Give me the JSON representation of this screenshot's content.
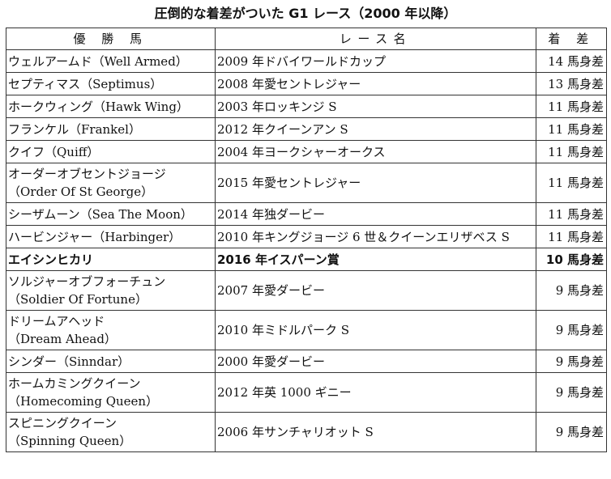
{
  "title": "圧倒的な着差がついた G1 レース（2000 年以降）",
  "headers": [
    "優 勝 馬",
    "レース名",
    "着 差"
  ],
  "rows": [
    {
      "winner": [
        "ウェルアームド（Well Armed）"
      ],
      "race": "2009 年ドバイワールドカップ",
      "margin": "14 馬身差"
    },
    {
      "winner": [
        "セプティマス（Septimus）"
      ],
      "race": "2008 年愛セントレジャー",
      "margin": "13 馬身差"
    },
    {
      "winner": [
        "ホークウィング（Hawk Wing）"
      ],
      "race": "2003 年ロッキンジ S",
      "margin": "11 馬身差"
    },
    {
      "winner": [
        "フランケル（Frankel）"
      ],
      "race": "2012 年クイーンアン S",
      "margin": "11 馬身差"
    },
    {
      "winner": [
        "クイフ（Quiff）"
      ],
      "race": "2004 年ヨークシャーオークス",
      "margin": "11 馬身差"
    },
    {
      "winner": [
        "オーダーオブセントジョージ",
        "（Order Of St George）"
      ],
      "race": "2015 年愛セントレジャー",
      "margin": "11 馬身差"
    },
    {
      "winner": [
        "シーザムーン（Sea The Moon）"
      ],
      "race": "2014 年独ダービー",
      "margin": "11 馬身差"
    },
    {
      "winner": [
        "ハービンジャー（Harbinger）"
      ],
      "race": "2010 年キングジョージ 6 世＆クイーンエリザベス S",
      "margin": "11 馬身差"
    },
    {
      "winner": [
        "エイシンヒカリ"
      ],
      "race": "2016 年イスパーン賞",
      "margin": "10 馬身差",
      "bold": true
    },
    {
      "winner": [
        "ソルジャーオブフォーチュン",
        "（Soldier Of Fortune）"
      ],
      "race": "2007 年愛ダービー",
      "margin": "9 馬身差"
    },
    {
      "winner": [
        "ドリームアヘッド",
        "（Dream Ahead）"
      ],
      "race": "2010 年ミドルパーク S",
      "margin": "9 馬身差"
    },
    {
      "winner": [
        "シンダー（Sinndar）"
      ],
      "race": "2000 年愛ダービー",
      "margin": "9 馬身差"
    },
    {
      "winner": [
        "ホームカミングクイーン",
        "（Homecoming Queen）"
      ],
      "race": "2012 年英 1000 ギニー",
      "margin": "9 馬身差"
    },
    {
      "winner": [
        "スピニングクイーン",
        "（Spinning Queen）"
      ],
      "race": "2006 年サンチャリオット S",
      "margin": "9 馬身差"
    }
  ]
}
